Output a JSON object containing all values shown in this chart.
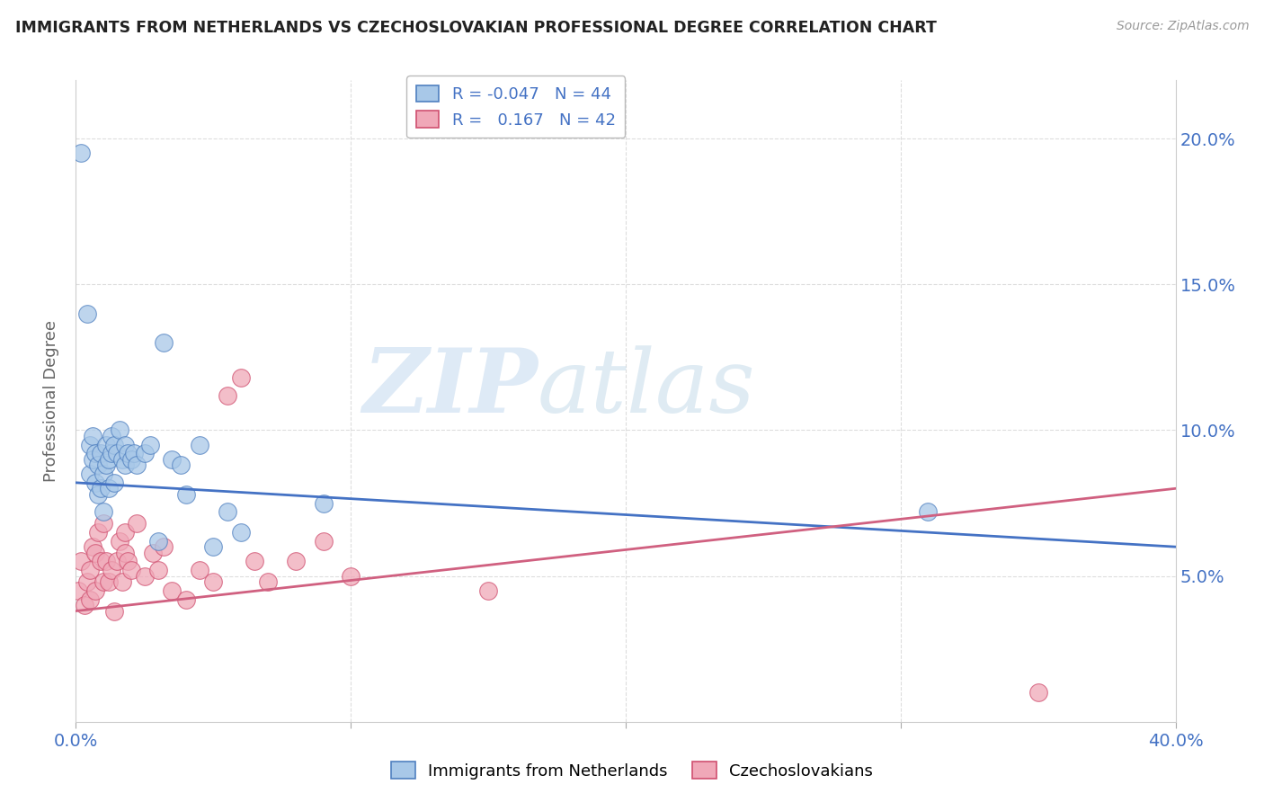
{
  "title": "IMMIGRANTS FROM NETHERLANDS VS CZECHOSLOVAKIAN PROFESSIONAL DEGREE CORRELATION CHART",
  "source": "Source: ZipAtlas.com",
  "ylabel": "Professional Degree",
  "right_yticks": [
    "5.0%",
    "10.0%",
    "15.0%",
    "20.0%"
  ],
  "right_ytick_vals": [
    0.05,
    0.1,
    0.15,
    0.2
  ],
  "legend_blue_label": "Immigrants from Netherlands",
  "legend_pink_label": "Czechoslovakians",
  "legend_blue_r": "-0.047",
  "legend_blue_n": "44",
  "legend_pink_r": "0.167",
  "legend_pink_n": "42",
  "blue_color": "#A8C8E8",
  "pink_color": "#F0A8B8",
  "blue_edge_color": "#5080C0",
  "pink_edge_color": "#D05070",
  "blue_line_color": "#4472C4",
  "pink_line_color": "#D06080",
  "watermark_zip": "ZIP",
  "watermark_atlas": "atlas",
  "blue_scatter_x": [
    0.002,
    0.004,
    0.005,
    0.005,
    0.006,
    0.006,
    0.007,
    0.007,
    0.008,
    0.008,
    0.009,
    0.009,
    0.01,
    0.01,
    0.011,
    0.011,
    0.012,
    0.012,
    0.013,
    0.013,
    0.014,
    0.014,
    0.015,
    0.016,
    0.017,
    0.018,
    0.018,
    0.019,
    0.02,
    0.021,
    0.022,
    0.025,
    0.027,
    0.03,
    0.032,
    0.035,
    0.038,
    0.04,
    0.045,
    0.05,
    0.055,
    0.06,
    0.09,
    0.31
  ],
  "blue_scatter_y": [
    0.195,
    0.14,
    0.085,
    0.095,
    0.09,
    0.098,
    0.082,
    0.092,
    0.078,
    0.088,
    0.08,
    0.092,
    0.085,
    0.072,
    0.095,
    0.088,
    0.09,
    0.08,
    0.098,
    0.092,
    0.095,
    0.082,
    0.092,
    0.1,
    0.09,
    0.095,
    0.088,
    0.092,
    0.09,
    0.092,
    0.088,
    0.092,
    0.095,
    0.062,
    0.13,
    0.09,
    0.088,
    0.078,
    0.095,
    0.06,
    0.072,
    0.065,
    0.075,
    0.072
  ],
  "pink_scatter_x": [
    0.001,
    0.002,
    0.003,
    0.004,
    0.005,
    0.005,
    0.006,
    0.007,
    0.007,
    0.008,
    0.009,
    0.01,
    0.01,
    0.011,
    0.012,
    0.013,
    0.014,
    0.015,
    0.016,
    0.017,
    0.018,
    0.018,
    0.019,
    0.02,
    0.022,
    0.025,
    0.028,
    0.03,
    0.032,
    0.035,
    0.04,
    0.045,
    0.05,
    0.055,
    0.06,
    0.065,
    0.07,
    0.08,
    0.09,
    0.1,
    0.15,
    0.35
  ],
  "pink_scatter_y": [
    0.045,
    0.055,
    0.04,
    0.048,
    0.042,
    0.052,
    0.06,
    0.058,
    0.045,
    0.065,
    0.055,
    0.068,
    0.048,
    0.055,
    0.048,
    0.052,
    0.038,
    0.055,
    0.062,
    0.048,
    0.065,
    0.058,
    0.055,
    0.052,
    0.068,
    0.05,
    0.058,
    0.052,
    0.06,
    0.045,
    0.042,
    0.052,
    0.048,
    0.112,
    0.118,
    0.055,
    0.048,
    0.055,
    0.062,
    0.05,
    0.045,
    0.01
  ],
  "blue_line_x0": 0.0,
  "blue_line_y0": 0.082,
  "blue_line_x1": 0.4,
  "blue_line_y1": 0.06,
  "pink_line_x0": 0.0,
  "pink_line_y0": 0.038,
  "pink_line_x1": 0.4,
  "pink_line_y1": 0.08,
  "xlim": [
    0.0,
    0.4
  ],
  "ylim": [
    0.0,
    0.22
  ],
  "background_color": "#FFFFFF",
  "grid_color": "#DDDDDD"
}
